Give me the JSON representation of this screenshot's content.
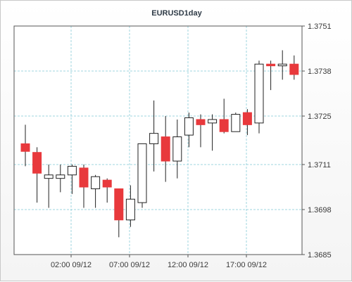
{
  "chart_data": {
    "type": "candlestick",
    "title": "EURUSD1day",
    "x_tick_labels": [
      "02:00 09/12",
      "07:00 09/12",
      "12:00 09/12",
      "17:00 09/12"
    ],
    "y_tick_labels": [
      "1.3751",
      "1.3738",
      "1.3725",
      "1.3711",
      "1.3698",
      "1.3685"
    ],
    "ylim": [
      1.3685,
      1.3751
    ],
    "grid": true,
    "colors": {
      "up": "#ffffff",
      "down": "#e8393c",
      "wick": "#222222",
      "grid": "#9fd4df"
    },
    "candles": [
      {
        "open": 1.3717,
        "high": 1.37225,
        "low": 1.37105,
        "close": 1.37148
      },
      {
        "open": 1.37145,
        "high": 1.3716,
        "low": 1.37,
        "close": 1.37085
      },
      {
        "open": 1.3707,
        "high": 1.3711,
        "low": 1.36985,
        "close": 1.3708
      },
      {
        "open": 1.3707,
        "high": 1.3711,
        "low": 1.3703,
        "close": 1.3708
      },
      {
        "open": 1.3708,
        "high": 1.3711,
        "low": 1.37025,
        "close": 1.37105
      },
      {
        "open": 1.371,
        "high": 1.3711,
        "low": 1.36985,
        "close": 1.37045
      },
      {
        "open": 1.3704,
        "high": 1.3708,
        "low": 1.36985,
        "close": 1.37075
      },
      {
        "open": 1.37065,
        "high": 1.3707,
        "low": 1.37,
        "close": 1.37045
      },
      {
        "open": 1.3704,
        "high": 1.3704,
        "low": 1.369,
        "close": 1.3695
      },
      {
        "open": 1.3695,
        "high": 1.3705,
        "low": 1.3693,
        "close": 1.3701
      },
      {
        "open": 1.37,
        "high": 1.3717,
        "low": 1.36985,
        "close": 1.3717
      },
      {
        "open": 1.3717,
        "high": 1.37295,
        "low": 1.3709,
        "close": 1.372
      },
      {
        "open": 1.3719,
        "high": 1.3725,
        "low": 1.3706,
        "close": 1.3712
      },
      {
        "open": 1.3712,
        "high": 1.3724,
        "low": 1.3707,
        "close": 1.3719
      },
      {
        "open": 1.37195,
        "high": 1.3726,
        "low": 1.3716,
        "close": 1.37245
      },
      {
        "open": 1.3724,
        "high": 1.37255,
        "low": 1.3716,
        "close": 1.37225
      },
      {
        "open": 1.3723,
        "high": 1.37255,
        "low": 1.3715,
        "close": 1.3724
      },
      {
        "open": 1.3724,
        "high": 1.373,
        "low": 1.372,
        "close": 1.37205
      },
      {
        "open": 1.37205,
        "high": 1.3726,
        "low": 1.37205,
        "close": 1.37255
      },
      {
        "open": 1.3726,
        "high": 1.3727,
        "low": 1.37195,
        "close": 1.37225
      },
      {
        "open": 1.3723,
        "high": 1.3741,
        "low": 1.372,
        "close": 1.374
      },
      {
        "open": 1.374,
        "high": 1.3741,
        "low": 1.37325,
        "close": 1.37395
      },
      {
        "open": 1.37395,
        "high": 1.3744,
        "low": 1.37355,
        "close": 1.374
      },
      {
        "open": 1.374,
        "high": 1.37425,
        "low": 1.37355,
        "close": 1.3737
      }
    ]
  }
}
